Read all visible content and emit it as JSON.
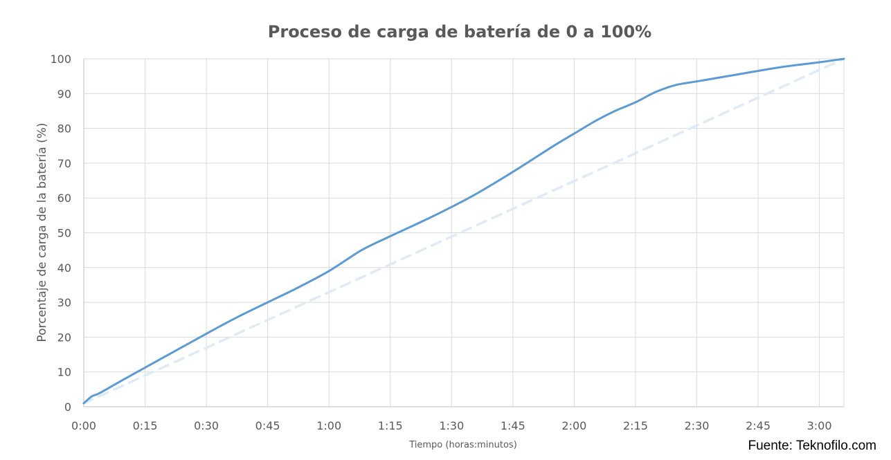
{
  "chart_data": {
    "type": "line",
    "title": "Proceso de carga de batería de 0 a 100%",
    "xlabel": "Tiempo (horas:minutos)",
    "ylabel": "Porcentaje de carga de la batería (%)",
    "source": "Fuente: Teknofilo.com",
    "x_unit": "minutes",
    "xlim": [
      0,
      186
    ],
    "ylim": [
      0,
      100
    ],
    "x_ticks": [
      0,
      15,
      30,
      45,
      60,
      75,
      90,
      105,
      120,
      135,
      150,
      165,
      180
    ],
    "x_tick_labels": [
      "0:00",
      "0:15",
      "0:30",
      "0:45",
      "1:00",
      "1:15",
      "1:30",
      "1:45",
      "2:00",
      "2:15",
      "2:30",
      "2:45",
      "3:00"
    ],
    "y_ticks": [
      0,
      10,
      20,
      30,
      40,
      50,
      60,
      70,
      80,
      90,
      100
    ],
    "grid": true,
    "legend": "none",
    "series": [
      {
        "color": "#5b9bd5",
        "style": "solid",
        "x": [
          0,
          2,
          4,
          10,
          20,
          30,
          38,
          45,
          52,
          60,
          68,
          75,
          85,
          95,
          105,
          115,
          120,
          125,
          130,
          135,
          140,
          145,
          150,
          160,
          170,
          180,
          186
        ],
        "y": [
          1,
          3,
          4,
          8,
          14.5,
          21,
          26,
          30,
          34,
          39,
          45,
          49,
          54.5,
          60.5,
          67.5,
          75,
          78.5,
          82,
          85,
          87.5,
          90.5,
          92.5,
          93.5,
          95.5,
          97.5,
          99,
          100
        ]
      },
      {
        "color": "#deebf7",
        "style": "dashed",
        "x": [
          0,
          186
        ],
        "y": [
          1,
          100
        ]
      }
    ]
  }
}
